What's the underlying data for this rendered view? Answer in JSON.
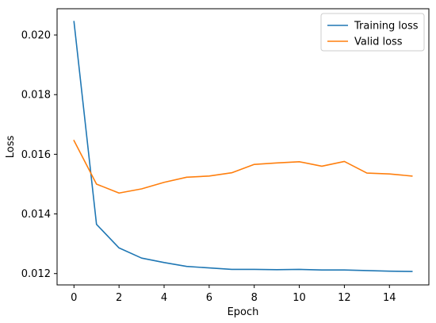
{
  "chart_data": {
    "type": "line",
    "xlabel": "Epoch",
    "ylabel": "Loss",
    "xlim": [
      -0.75,
      15.75
    ],
    "ylim": [
      0.01162,
      0.02088
    ],
    "xticks": [
      0,
      2,
      4,
      6,
      8,
      10,
      12,
      14
    ],
    "xtick_labels": [
      "0",
      "2",
      "4",
      "6",
      "8",
      "10",
      "12",
      "14"
    ],
    "yticks": [
      0.012,
      0.014,
      0.016,
      0.018,
      0.02
    ],
    "ytick_labels": [
      "0.012",
      "0.014",
      "0.016",
      "0.018",
      "0.020"
    ],
    "grid": false,
    "legend_position": "top-right",
    "x": [
      0,
      1,
      2,
      3,
      4,
      5,
      6,
      7,
      8,
      9,
      10,
      11,
      12,
      13,
      14,
      15
    ],
    "series": [
      {
        "name": "Training loss",
        "color": "#1f77b4",
        "values": [
          0.02045,
          0.01365,
          0.01286,
          0.01252,
          0.01237,
          0.01224,
          0.01219,
          0.01214,
          0.01214,
          0.01213,
          0.01214,
          0.01212,
          0.01212,
          0.0121,
          0.01208,
          0.01207
        ]
      },
      {
        "name": "Valid loss",
        "color": "#ff7f0e",
        "values": [
          0.01646,
          0.015,
          0.0147,
          0.01484,
          0.01506,
          0.01523,
          0.01527,
          0.01538,
          0.01566,
          0.01571,
          0.01575,
          0.0156,
          0.01576,
          0.01537,
          0.01534,
          0.01527
        ]
      }
    ]
  }
}
